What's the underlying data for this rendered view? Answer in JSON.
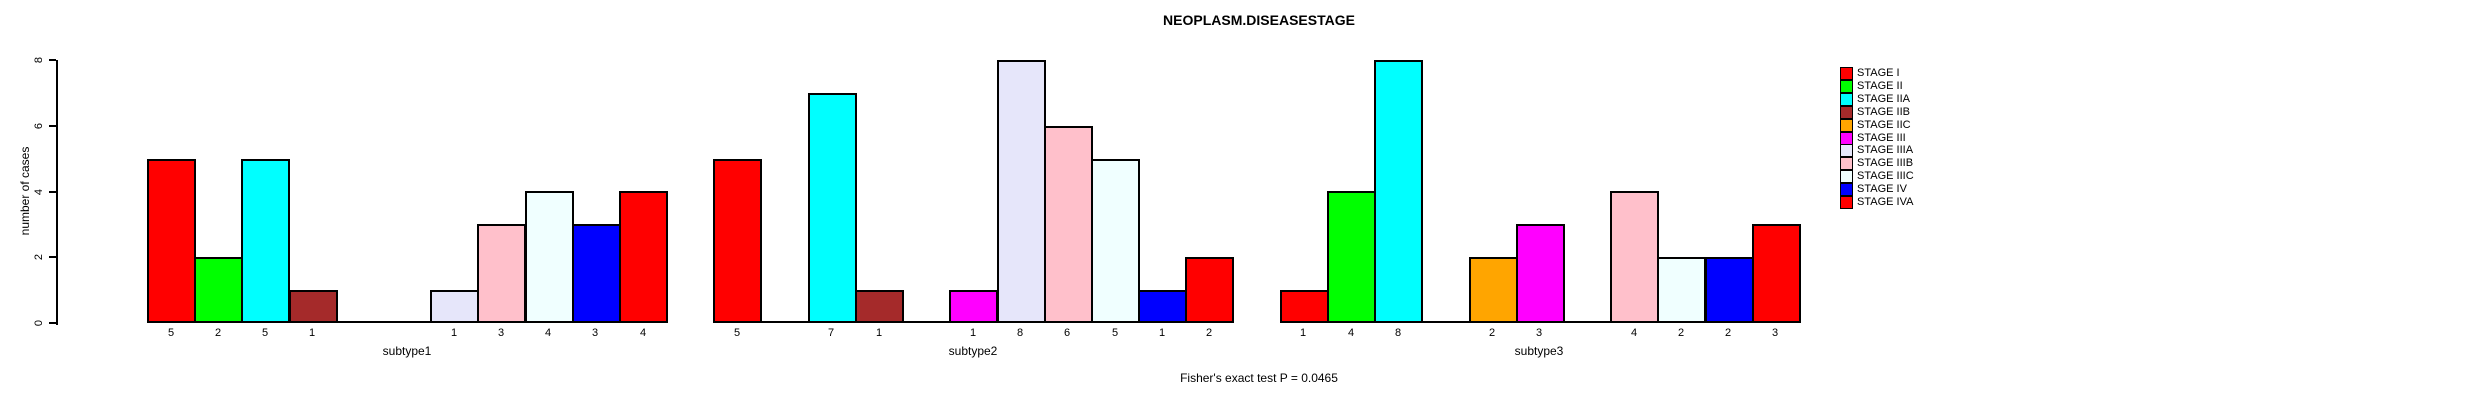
{
  "title": "NEOPLASM.DISEASESTAGE",
  "footer": "Fisher's exact test P = 0.0465",
  "chart_data": {
    "type": "bar",
    "title": "NEOPLASM.DISEASESTAGE",
    "xlabel": "",
    "ylabel": "number of cases",
    "ylim": [
      0,
      8
    ],
    "yticks": [
      0,
      2,
      4,
      6,
      8
    ],
    "grid": false,
    "legend_position": "right",
    "bar_labels": "value shown under each non-zero bar",
    "annotation": "Fisher's exact test P = 0.0465",
    "categories": [
      "subtype1",
      "subtype2",
      "subtype3"
    ],
    "series": [
      {
        "name": "STAGE I",
        "color": "#FF0000",
        "values": [
          5,
          5,
          1
        ]
      },
      {
        "name": "STAGE II",
        "color": "#00FF00",
        "values": [
          2,
          0,
          4
        ]
      },
      {
        "name": "STAGE IIA",
        "color": "#00FFFF",
        "values": [
          5,
          7,
          8
        ]
      },
      {
        "name": "STAGE IIB",
        "color": "#A52A2A",
        "values": [
          1,
          1,
          0
        ]
      },
      {
        "name": "STAGE IIC",
        "color": "#FFA500",
        "values": [
          0,
          0,
          2
        ]
      },
      {
        "name": "STAGE III",
        "color": "#FF00FF",
        "values": [
          0,
          1,
          3
        ]
      },
      {
        "name": "STAGE IIIA",
        "color": "#E6E6FA",
        "values": [
          1,
          8,
          0
        ]
      },
      {
        "name": "STAGE IIIB",
        "color": "#FFC0CB",
        "values": [
          3,
          6,
          4
        ]
      },
      {
        "name": "STAGE IIIC",
        "color": "#F0FFFF",
        "values": [
          4,
          5,
          2
        ]
      },
      {
        "name": "STAGE IV",
        "color": "#0000FF",
        "values": [
          3,
          1,
          2
        ]
      },
      {
        "name": "STAGE IVA",
        "color": "#FF0000",
        "values": [
          4,
          2,
          3
        ]
      }
    ]
  }
}
